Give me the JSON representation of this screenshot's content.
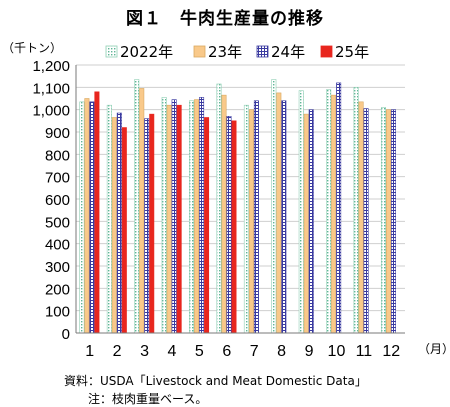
{
  "header": {
    "title": "図１　牛肉生産量の推移",
    "y_unit": "（千トン）",
    "x_unit": "（月）"
  },
  "notes": {
    "source": "資料：USDA「Livestock and Meat Domestic Data」",
    "footnote": "注：枝肉重量ベース。"
  },
  "chart_data": {
    "type": "bar",
    "title": "図１　牛肉生産量の推移",
    "xlabel": "（月）",
    "ylabel": "（千トン）",
    "categories": [
      "1",
      "2",
      "3",
      "4",
      "5",
      "6",
      "7",
      "8",
      "9",
      "10",
      "11",
      "12"
    ],
    "ylim": [
      0,
      1200
    ],
    "y_ticks": [
      0,
      100,
      200,
      300,
      400,
      500,
      600,
      700,
      800,
      900,
      1000,
      1100,
      1200
    ],
    "y_tick_labels": [
      "0",
      "100",
      "200",
      "300",
      "400",
      "500",
      "600",
      "700",
      "800",
      "900",
      "1,000",
      "1,100",
      "1,200"
    ],
    "grid": true,
    "legend_position": "top",
    "series": [
      {
        "name": "2022年",
        "color": "#8fcfb4",
        "pattern": "dots",
        "values": [
          1035,
          1020,
          1135,
          1055,
          1040,
          1115,
          1020,
          1135,
          1085,
          1090,
          1100,
          1010
        ]
      },
      {
        "name": "23年",
        "color": "#f9c98a",
        "pattern": "solid",
        "values": [
          1050,
          965,
          1095,
          1020,
          1045,
          1065,
          1000,
          1075,
          980,
          1065,
          1035,
          1000
        ]
      },
      {
        "name": "24年",
        "color": "#3a3aa0",
        "pattern": "grid",
        "values": [
          1035,
          985,
          960,
          1045,
          1055,
          970,
          1040,
          1040,
          1000,
          1120,
          1005,
          1000
        ]
      },
      {
        "name": "25年",
        "color": "#e8261e",
        "pattern": "solid",
        "values": [
          1080,
          920,
          980,
          1020,
          965,
          950,
          null,
          null,
          null,
          null,
          null,
          null
        ]
      }
    ]
  }
}
